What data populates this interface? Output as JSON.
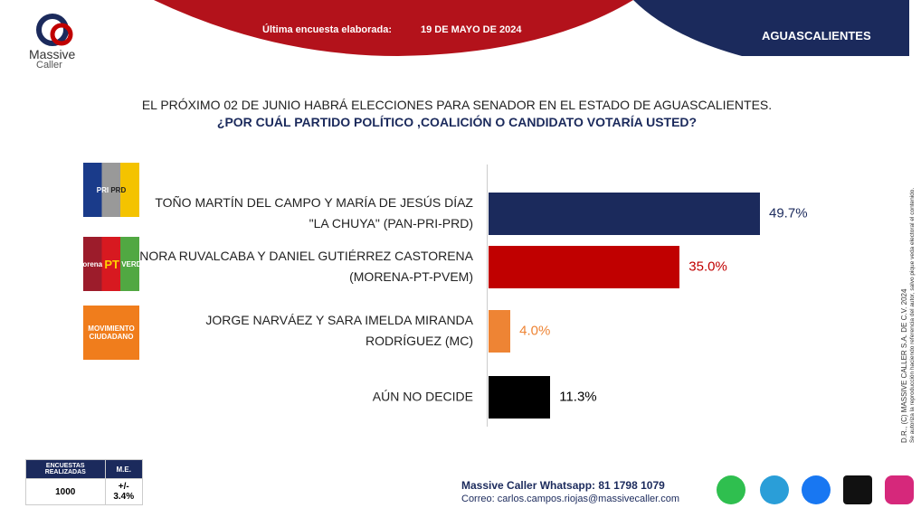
{
  "header": {
    "brand": "Massive",
    "brand_sub": "Caller",
    "survey_label": "Última encuesta elaborada:",
    "survey_date": "19 DE MAYO DE 2024",
    "state": "AGUASCALIENTES"
  },
  "logos": {
    "pri": "PRI",
    "prd": "PRD",
    "morena": "morena",
    "pt": "PT",
    "verde": "VERDE",
    "mc": "MOVIMIENTO CIUDADANO"
  },
  "chart_data": {
    "type": "bar",
    "orientation": "horizontal",
    "title": "EL PRÓXIMO 02 DE JUNIO HABRÁ ELECCIONES PARA SENADOR EN EL ESTADO DE AGUASCALIENTES.",
    "subtitle": "¿POR CUÁL PARTIDO POLÍTICO ,COALICIÓN O CANDIDATO  VOTARÍA USTED?",
    "categories": [
      "TOÑO MARTÍN DEL CAMPO Y MARÍA DE JESÚS DÍAZ \"LA CHUYA\" (PAN-PRI-PRD)",
      "NORA RUVALCABA Y DANIEL GUTIÉRREZ CASTORENA (MORENA-PT-PVEM)",
      "JORGE NARVÁEZ Y SARA IMELDA MIRANDA RODRÍGUEZ (MC)",
      "AÚN NO DECIDE"
    ],
    "values": [
      49.7,
      35.0,
      4.0,
      11.3
    ],
    "value_labels": [
      "49.7%",
      "35.0%",
      "4.0%",
      "11.3%"
    ],
    "colors": [
      "#1b2a5c",
      "#c00000",
      "#ee8434",
      "#000000"
    ],
    "label_colors": [
      "#1b2a5c",
      "#c00000",
      "#ee8434",
      "#000000"
    ]
  },
  "footer": {
    "table_head": [
      "ENCUESTAS REALIZADAS",
      "M.E."
    ],
    "table_row": [
      "1000",
      "+/- 3.4%"
    ],
    "whatsapp": "Massive Caller Whatsapp: 81 1798 1079",
    "email": "Correo: carlos.campos.riojas@massivecaller.com"
  },
  "side_note": [
    "D.R., (C) MASSIVE CALLER S.A. DE C.V. 2024",
    "Se autoriza la reproducción haciendo referencia del autor, salvo pique veda electoral el contenido."
  ]
}
